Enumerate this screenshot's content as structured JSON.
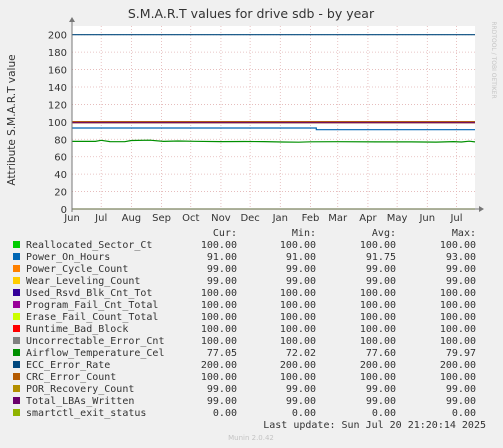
{
  "chart_data": {
    "type": "line",
    "title": "S.M.A.R.T values for drive sdb - by year",
    "ylabel": "Attribute S.M.A.R.T value",
    "side_label": "RRDTOOL / TOBI OETIKER",
    "ylim": [
      0,
      210
    ],
    "yticks": [
      0,
      20,
      40,
      60,
      80,
      100,
      120,
      140,
      160,
      180,
      200
    ],
    "months": [
      "Jun",
      "Jul",
      "Aug",
      "Sep",
      "Oct",
      "Nov",
      "Dec",
      "Jan",
      "Feb",
      "Mar",
      "Apr",
      "May",
      "Jun",
      "Jul"
    ],
    "x_range": [
      "2024-06-01",
      "2025-07-20"
    ],
    "grid": true,
    "headers": {
      "cur": "Cur:",
      "min": "Min:",
      "avg": "Avg:",
      "max": "Max:"
    },
    "series": [
      {
        "name": "Reallocated_Sector_Ct",
        "color": "#00cc00",
        "cur": "100.00",
        "min": "100.00",
        "avg": "100.00",
        "max": "100.00"
      },
      {
        "name": "Power_On_Hours",
        "color": "#0066b3",
        "cur": "91.00",
        "min": "91.00",
        "avg": "91.75",
        "max": "93.00",
        "points": [
          [
            "2024-06-01",
            93
          ],
          [
            "2025-01-31",
            93
          ],
          [
            "2025-02-07",
            91
          ],
          [
            "2025-07-20",
            91
          ]
        ]
      },
      {
        "name": "Power_Cycle_Count",
        "color": "#ff8000",
        "cur": "99.00",
        "min": "99.00",
        "avg": "99.00",
        "max": "99.00"
      },
      {
        "name": "Wear_Leveling_Count",
        "color": "#ffcc00",
        "cur": "99.00",
        "min": "99.00",
        "avg": "99.00",
        "max": "99.00"
      },
      {
        "name": "Used_Rsvd_Blk_Cnt_Tot",
        "color": "#330099",
        "cur": "100.00",
        "min": "100.00",
        "avg": "100.00",
        "max": "100.00"
      },
      {
        "name": "Program_Fail_Cnt_Total",
        "color": "#990099",
        "cur": "100.00",
        "min": "100.00",
        "avg": "100.00",
        "max": "100.00"
      },
      {
        "name": "Erase_Fail_Count_Total",
        "color": "#ccff00",
        "cur": "100.00",
        "min": "100.00",
        "avg": "100.00",
        "max": "100.00"
      },
      {
        "name": "Runtime_Bad_Block",
        "color": "#ff0000",
        "cur": "100.00",
        "min": "100.00",
        "avg": "100.00",
        "max": "100.00"
      },
      {
        "name": "Uncorrectable_Error_Cnt",
        "color": "#808080",
        "cur": "100.00",
        "min": "100.00",
        "avg": "100.00",
        "max": "100.00"
      },
      {
        "name": "Airflow_Temperature_Cel",
        "color": "#008f00",
        "cur": "77.05",
        "min": "72.02",
        "avg": "77.60",
        "max": "79.97",
        "points": [
          [
            "2024-06-01",
            77.6
          ],
          [
            "2024-06-25",
            77.6
          ],
          [
            "2024-07-01",
            78.8
          ],
          [
            "2024-07-10",
            77.4
          ],
          [
            "2024-07-25",
            77.2
          ],
          [
            "2024-08-01",
            78.6
          ],
          [
            "2024-08-20",
            78.9
          ],
          [
            "2024-09-03",
            77.6
          ],
          [
            "2024-09-18",
            78.0
          ],
          [
            "2024-10-05",
            77.7
          ],
          [
            "2024-11-01",
            77.3
          ],
          [
            "2024-11-25",
            77.5
          ],
          [
            "2024-12-15",
            77.3
          ],
          [
            "2025-01-03",
            76.9
          ],
          [
            "2025-01-20",
            76.6
          ],
          [
            "2025-02-01",
            77.1
          ],
          [
            "2025-03-01",
            77.2
          ],
          [
            "2025-04-10",
            77.0
          ],
          [
            "2025-05-15",
            77.0
          ],
          [
            "2025-06-10",
            76.8
          ],
          [
            "2025-06-28",
            77.3
          ],
          [
            "2025-07-06",
            76.9
          ],
          [
            "2025-07-14",
            77.8
          ],
          [
            "2025-07-20",
            77.05
          ]
        ]
      },
      {
        "name": "ECC_Error_Rate",
        "color": "#00487d",
        "cur": "200.00",
        "min": "200.00",
        "avg": "200.00",
        "max": "200.00"
      },
      {
        "name": "CRC_Error_Count",
        "color": "#b35a00",
        "cur": "100.00",
        "min": "100.00",
        "avg": "100.00",
        "max": "100.00"
      },
      {
        "name": "POR_Recovery_Count",
        "color": "#b38f00",
        "cur": "99.00",
        "min": "99.00",
        "avg": "99.00",
        "max": "99.00"
      },
      {
        "name": "Total_LBAs_Written",
        "color": "#6b006b",
        "cur": "99.00",
        "min": "99.00",
        "avg": "99.00",
        "max": "99.00"
      },
      {
        "name": "smartctl_exit_status",
        "color": "#8fb300",
        "cur": "0.00",
        "min": "0.00",
        "avg": "0.00",
        "max": "0.00"
      }
    ],
    "footer": {
      "last_update": "Last update:  Sun Jul 20 21:20:14 2025",
      "version": "Munin 2.0.42"
    }
  }
}
